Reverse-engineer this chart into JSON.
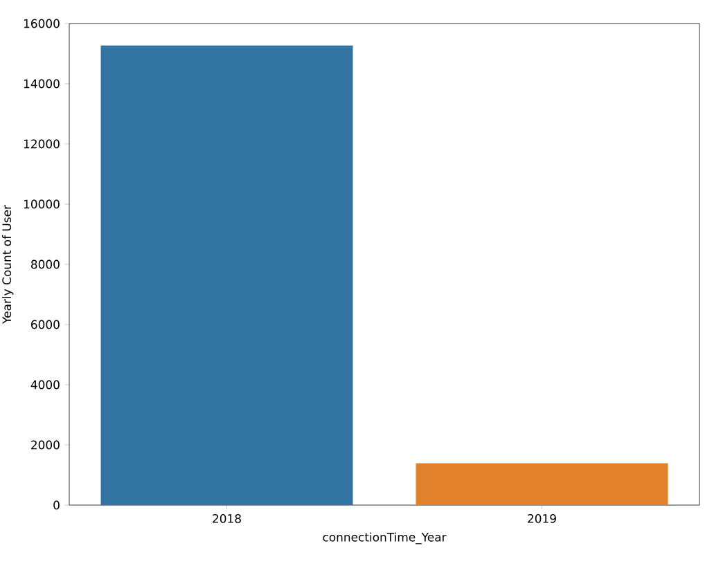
{
  "chart_data": {
    "type": "bar",
    "xlabel": "connectionTime_Year",
    "ylabel": "Yearly Count of User",
    "categories": [
      "2018",
      "2019"
    ],
    "values": [
      15270,
      1390
    ],
    "colors": [
      "#3274a1",
      "#e1812c"
    ],
    "ylim": [
      0,
      16000
    ],
    "yticks": [
      0,
      2000,
      4000,
      6000,
      8000,
      10000,
      12000,
      14000,
      16000
    ]
  }
}
